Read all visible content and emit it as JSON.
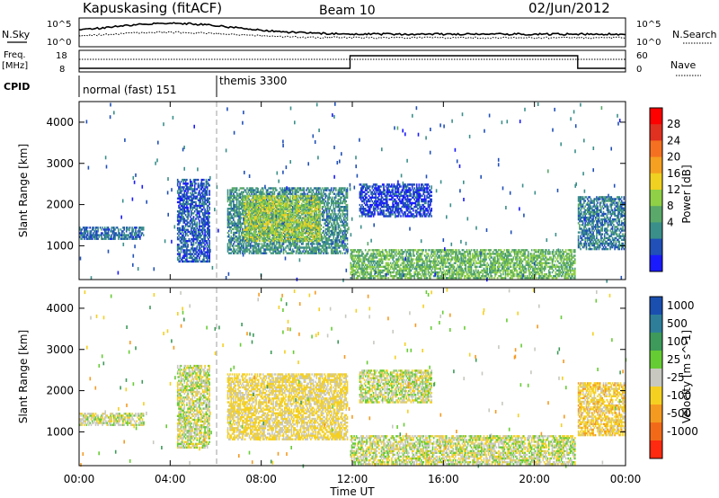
{
  "header": {
    "station": "Kapuskasing (fitACF)",
    "beam": "Beam 10",
    "date": "02/Jun/2012"
  },
  "side_labels": {
    "nsky": "N.Sky",
    "nsearch": "N.Search",
    "freq": "Freq.",
    "freq_unit": "[MHz]",
    "nave": "Nave",
    "cpid": "CPID"
  },
  "top_ticks": {
    "nsky_hi": "10^5",
    "nsky_lo": "10^0",
    "nsearch_hi": "10^5",
    "nsearch_lo": "10^0",
    "freq_hi": "18",
    "freq_lo": "8",
    "nave_hi": "60",
    "nave_lo": "0"
  },
  "cpid_labels": [
    "normal (fast) 151",
    "themis 3300"
  ],
  "x_axis": {
    "label": "Time UT",
    "ticks": [
      "00:00",
      "04:00",
      "08:00",
      "12:00",
      "16:00",
      "20:00",
      "00:00"
    ]
  },
  "y_axis": {
    "label": "Slant Range [km]",
    "ticks": [
      "1000",
      "2000",
      "3000",
      "4000"
    ]
  },
  "power_colorbar": {
    "label": "Power [dB]",
    "ticks": [
      "4",
      "8",
      "12",
      "16",
      "20",
      "24",
      "28"
    ],
    "colors": [
      "#1a1aff",
      "#2050b8",
      "#3a8f8a",
      "#5aa86a",
      "#8fd046",
      "#f0d020",
      "#f5a020",
      "#f57020",
      "#e03020",
      "#ff0000"
    ]
  },
  "velocity_colorbar": {
    "label": "Velocity [m s^-1]",
    "ticks": [
      "1000",
      "500",
      "100",
      "25",
      "-25",
      "-100",
      "-500",
      "-1000"
    ],
    "colors": [
      "#1a4fb0",
      "#2e7e9a",
      "#3d9a5a",
      "#66cc33",
      "#c8c8c0",
      "#f5d020",
      "#f59a20",
      "#f26a18",
      "#ff2a10"
    ]
  },
  "chart_data": [
    {
      "type": "heatmap",
      "title": "Power [dB]",
      "xlabel": "Time UT",
      "ylabel": "Slant Range [km]",
      "xlim": [
        0,
        24
      ],
      "ylim": [
        180,
        4500
      ],
      "colorbar": [
        4,
        28
      ],
      "regions": [
        {
          "t0": 0.0,
          "t1": 2.8,
          "r0": 1150,
          "r1": 1450,
          "val": 7
        },
        {
          "t0": 4.3,
          "t1": 5.7,
          "r0": 600,
          "r1": 2600,
          "val": 6
        },
        {
          "t0": 6.5,
          "t1": 11.8,
          "r0": 800,
          "r1": 2400,
          "val": 9
        },
        {
          "t0": 7.2,
          "t1": 10.6,
          "r0": 1100,
          "r1": 2200,
          "val": 14
        },
        {
          "t0": 11.9,
          "t1": 21.8,
          "r0": 200,
          "r1": 900,
          "val": 12
        },
        {
          "t0": 12.3,
          "t1": 15.5,
          "r0": 1700,
          "r1": 2500,
          "val": 5
        },
        {
          "t0": 21.9,
          "t1": 24.0,
          "r0": 900,
          "r1": 2200,
          "val": 8
        }
      ]
    },
    {
      "type": "heatmap",
      "title": "Velocity [m s^-1]",
      "xlabel": "Time UT",
      "ylabel": "Slant Range [km]",
      "xlim": [
        0,
        24
      ],
      "ylim": [
        180,
        4500
      ],
      "colorbar": [
        -1000,
        1000
      ],
      "regions": [
        {
          "t0": 0.0,
          "t1": 2.8,
          "r0": 1150,
          "r1": 1450,
          "val": 0
        },
        {
          "t0": 4.3,
          "t1": 5.7,
          "r0": 600,
          "r1": 2600,
          "val": 0
        },
        {
          "t0": 6.5,
          "t1": 11.8,
          "r0": 800,
          "r1": 2400,
          "val": -40
        },
        {
          "t0": 11.9,
          "t1": 21.8,
          "r0": 200,
          "r1": 900,
          "val": 0
        },
        {
          "t0": 12.3,
          "t1": 15.5,
          "r0": 1700,
          "r1": 2500,
          "val": 0
        },
        {
          "t0": 21.9,
          "t1": 24.0,
          "r0": 900,
          "r1": 2200,
          "val": -60
        }
      ]
    }
  ]
}
